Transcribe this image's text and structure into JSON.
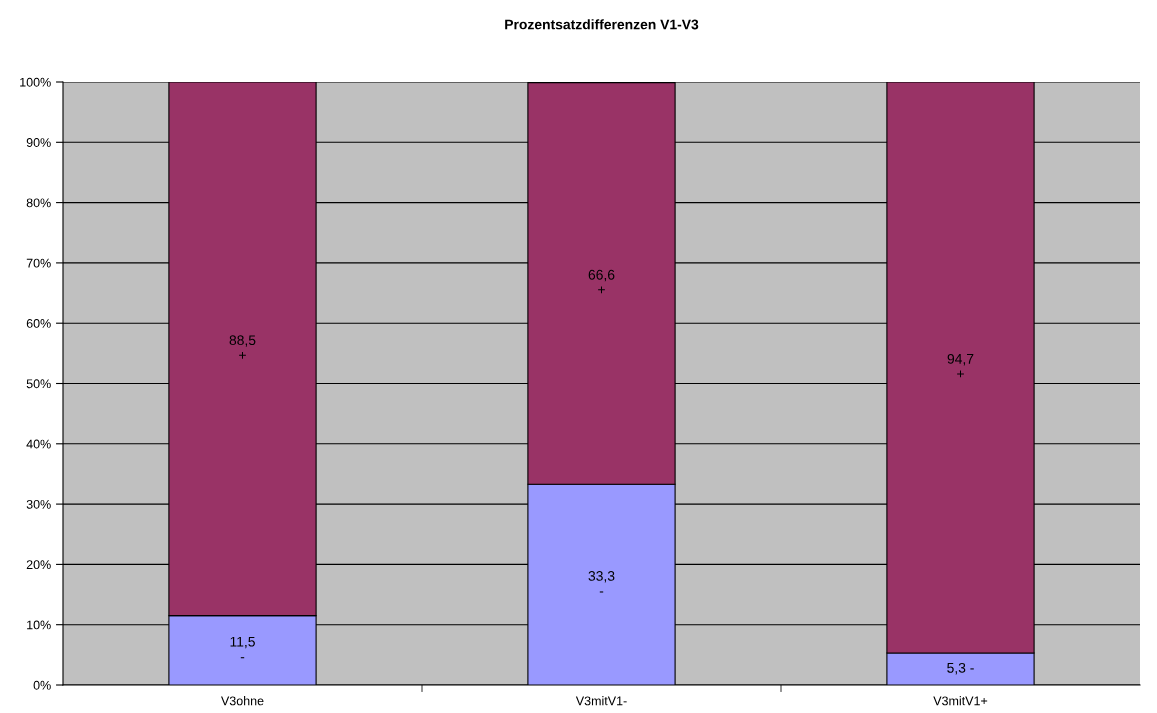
{
  "chart_data": {
    "type": "bar",
    "title": "Prozentsatzdifferenzen V1-V3",
    "stacked": true,
    "categories": [
      "V3ohne",
      "V3mitV1-",
      "V3mitV1+"
    ],
    "series": [
      {
        "color": "#9999ff",
        "values": [
          11.5,
          33.3,
          5.3
        ],
        "value_labels": [
          "11,5\n-",
          "33,3\n-",
          "5,3 -"
        ]
      },
      {
        "color": "#993366",
        "values": [
          88.5,
          66.6,
          94.7
        ],
        "value_labels": [
          "88,5\n+",
          "66,6\n+",
          "94,7\n+"
        ]
      }
    ],
    "ylim": [
      0,
      100
    ],
    "yticks": [
      {
        "value": 0,
        "label": "0%"
      },
      {
        "value": 10,
        "label": "10%"
      },
      {
        "value": 20,
        "label": "20%"
      },
      {
        "value": 30,
        "label": "30%"
      },
      {
        "value": 40,
        "label": "40%"
      },
      {
        "value": 50,
        "label": "50%"
      },
      {
        "value": 60,
        "label": "60%"
      },
      {
        "value": 70,
        "label": "70%"
      },
      {
        "value": 80,
        "label": "80%"
      },
      {
        "value": 90,
        "label": "90%"
      },
      {
        "value": 100,
        "label": "100%"
      }
    ],
    "grid": "y",
    "legend": false
  }
}
